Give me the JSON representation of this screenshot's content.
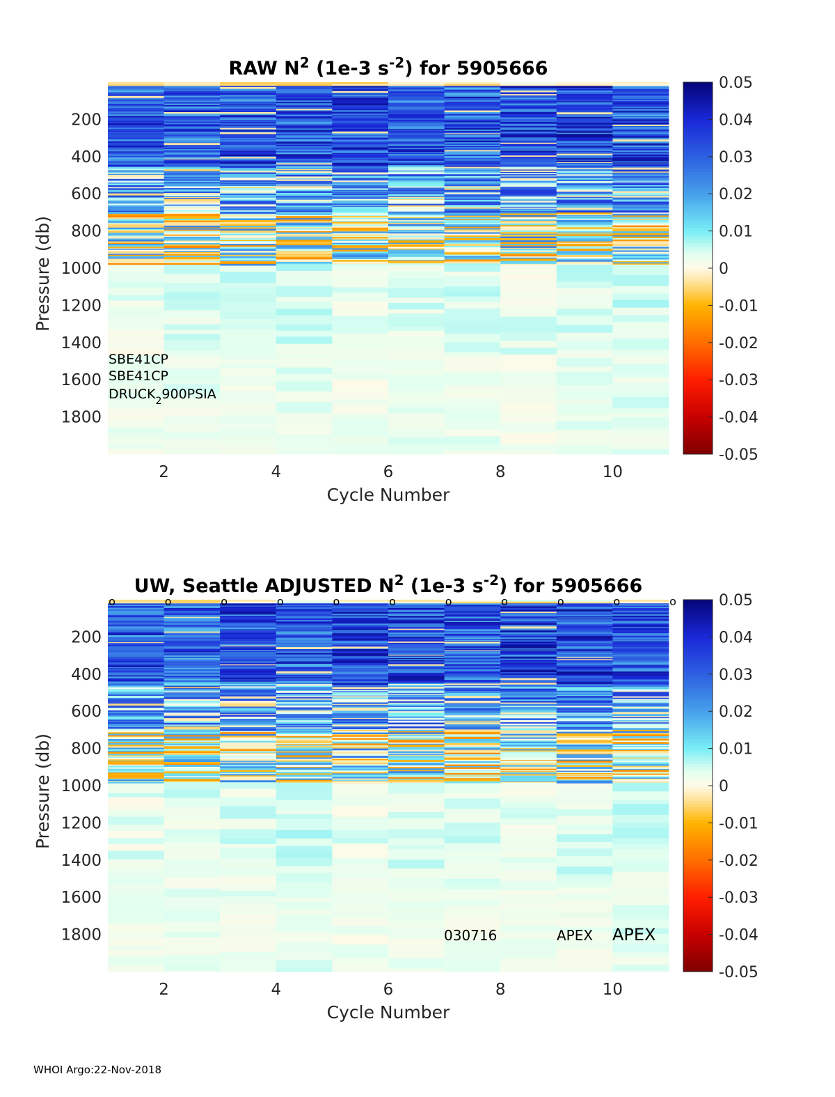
{
  "footer": "WHOI Argo:22-Nov-2018",
  "chart_data": [
    {
      "type": "heatmap",
      "title_parts": [
        "RAW N",
        "2",
        " (1e-3 s",
        "-2",
        ") for 5905666"
      ],
      "title": "RAW N^2 (1e-3 s^-2) for 5905666",
      "xlabel": "Cycle Number",
      "ylabel": "Pressure (db)",
      "xlim": [
        1,
        11
      ],
      "ylim": [
        0,
        2000
      ],
      "x_ticks": [
        2,
        4,
        6,
        8,
        10
      ],
      "y_ticks": [
        200,
        400,
        600,
        800,
        1000,
        1200,
        1400,
        1600,
        1800
      ],
      "cycles": [
        1,
        2,
        3,
        4,
        5,
        6,
        7,
        8,
        9,
        10
      ],
      "colorbar": {
        "min": -0.05,
        "max": 0.05,
        "ticks": [
          "0.05",
          "0.04",
          "0.03",
          "0.02",
          "0.01",
          "0",
          "-0.01",
          "-0.02",
          "-0.03",
          "-0.04",
          "-0.05"
        ]
      },
      "annotations": [
        {
          "text": "SBE41CP"
        },
        {
          "text": "SBE41CP"
        },
        {
          "text": "DRUCK",
          "sub": "2",
          "after": "900PSIA"
        }
      ],
      "deep_layer_values": [
        0.003,
        0.004,
        0.004,
        0.005,
        0.003,
        0.004,
        0.004,
        0.003,
        0.004,
        0.005
      ],
      "upper_layer_values": [
        0.045,
        0.044,
        0.046,
        0.045,
        0.047,
        0.046,
        0.045,
        0.047,
        0.048,
        0.046
      ]
    },
    {
      "type": "heatmap",
      "title_parts": [
        "UW, Seattle  ADJUSTED N",
        "2",
        " (1e-3 s",
        "-2",
        ") for 5905666"
      ],
      "title": "UW, Seattle  ADJUSTED N^2 (1e-3 s^-2) for 5905666",
      "xlabel": "Cycle Number",
      "ylabel": "Pressure (db)",
      "xlim": [
        1,
        11
      ],
      "ylim": [
        0,
        2000
      ],
      "x_ticks": [
        2,
        4,
        6,
        8,
        10
      ],
      "y_ticks": [
        200,
        400,
        600,
        800,
        1000,
        1200,
        1400,
        1600,
        1800
      ],
      "cycles": [
        1,
        2,
        3,
        4,
        5,
        6,
        7,
        8,
        9,
        10
      ],
      "marker_symbol": "o",
      "marker_cycles": [
        1,
        2,
        3,
        4,
        5,
        6,
        7,
        8,
        9,
        10,
        11
      ],
      "colorbar": {
        "min": -0.05,
        "max": 0.05,
        "ticks": [
          "0.05",
          "0.04",
          "0.03",
          "0.02",
          "0.01",
          "0",
          "-0.01",
          "-0.02",
          "-0.03",
          "-0.04",
          "-0.05"
        ]
      },
      "annotations": [
        {
          "text": "030716"
        },
        {
          "text": "APEX"
        },
        {
          "text": "APEX"
        }
      ],
      "deep_layer_values": [
        0.003,
        0.004,
        0.004,
        0.005,
        0.003,
        0.004,
        0.004,
        0.003,
        0.004,
        0.005
      ],
      "upper_layer_values": [
        0.045,
        0.044,
        0.046,
        0.045,
        0.047,
        0.046,
        0.045,
        0.047,
        0.048,
        0.046
      ]
    }
  ]
}
